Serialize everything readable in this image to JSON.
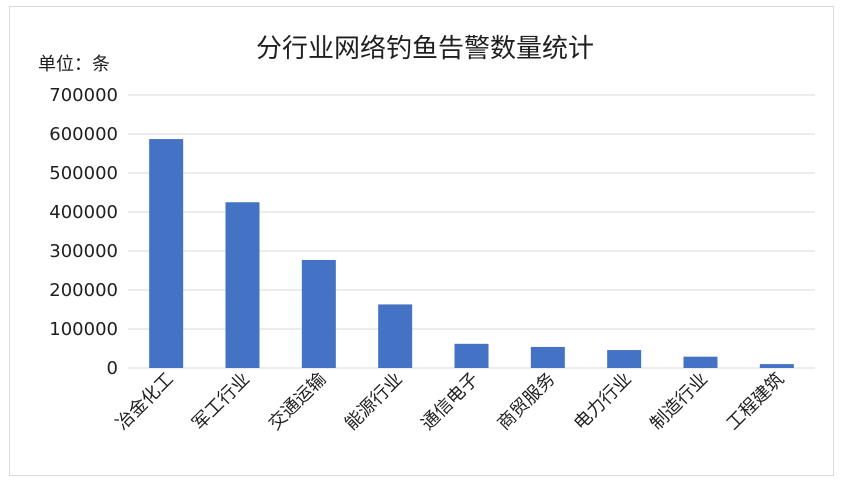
{
  "chart_data": {
    "type": "bar",
    "title": "分行业网络钓鱼告警数量统计",
    "unit_label": "单位：条",
    "categories": [
      "冶金化工",
      "军工行业",
      "交通运输",
      "能源行业",
      "通信电子",
      "商贸服务",
      "电力行业",
      "制造行业",
      "工程建筑"
    ],
    "values": [
      587000,
      425000,
      277000,
      163000,
      62000,
      54000,
      46000,
      29000,
      10000
    ],
    "ylim": [
      0,
      700000
    ],
    "yticks": [
      0,
      100000,
      200000,
      300000,
      400000,
      500000,
      600000,
      700000
    ],
    "grid": true,
    "legend": "none",
    "bar_color": "#4472c4",
    "grid_color": "#d9d9d9"
  }
}
